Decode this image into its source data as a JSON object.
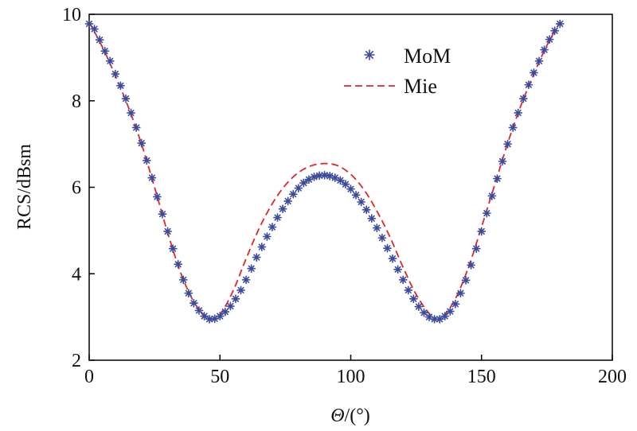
{
  "chart_data": {
    "type": "line",
    "title": "",
    "xlabel_symbol": "Θ",
    "xlabel_unit": "/(°)",
    "ylabel": "RCS/dBsm",
    "xlim": [
      0,
      200
    ],
    "ylim": [
      2,
      10
    ],
    "xticks": [
      0,
      50,
      100,
      150,
      200
    ],
    "yticks": [
      2,
      4,
      6,
      8,
      10
    ],
    "grid": false,
    "legend_position": "top-right",
    "series": [
      {
        "name": "MoM",
        "style": "markers",
        "marker": "asterisk",
        "color": "#3b4a9a",
        "x": [
          0,
          2,
          4,
          6,
          8,
          10,
          12,
          14,
          16,
          18,
          20,
          22,
          24,
          26,
          28,
          30,
          32,
          34,
          36,
          38,
          40,
          42,
          44,
          46,
          48,
          50,
          52,
          54,
          56,
          58,
          60,
          62,
          64,
          66,
          68,
          70,
          72,
          74,
          76,
          78,
          80,
          82,
          84,
          86,
          88,
          90,
          92,
          94,
          96,
          98,
          100,
          102,
          104,
          106,
          108,
          110,
          112,
          114,
          116,
          118,
          120,
          122,
          124,
          126,
          128,
          130,
          132,
          134,
          136,
          138,
          140,
          142,
          144,
          146,
          148,
          150,
          152,
          154,
          156,
          158,
          160,
          162,
          164,
          166,
          168,
          170,
          172,
          174,
          176,
          178,
          180
        ],
        "y": [
          9.78,
          9.66,
          9.41,
          9.15,
          8.92,
          8.62,
          8.35,
          8.05,
          7.72,
          7.38,
          7.02,
          6.62,
          6.22,
          5.78,
          5.38,
          4.98,
          4.58,
          4.22,
          3.86,
          3.55,
          3.32,
          3.15,
          3.02,
          2.95,
          2.96,
          3.02,
          3.12,
          3.25,
          3.42,
          3.62,
          3.86,
          4.12,
          4.38,
          4.62,
          4.86,
          5.08,
          5.3,
          5.5,
          5.68,
          5.84,
          5.98,
          6.1,
          6.18,
          6.24,
          6.27,
          6.28,
          6.26,
          6.22,
          6.16,
          6.07,
          5.96,
          5.82,
          5.66,
          5.48,
          5.28,
          5.06,
          4.83,
          4.59,
          4.35,
          4.1,
          3.86,
          3.62,
          3.42,
          3.24,
          3.1,
          3.0,
          2.95,
          2.95,
          3.02,
          3.13,
          3.3,
          3.55,
          3.85,
          4.2,
          4.58,
          4.98,
          5.4,
          5.8,
          6.2,
          6.6,
          7.0,
          7.38,
          7.72,
          8.05,
          8.37,
          8.65,
          8.92,
          9.18,
          9.42,
          9.62,
          9.78
        ]
      },
      {
        "name": "Mie",
        "style": "dashed-line",
        "color": "#e0262b",
        "x": [
          0,
          5,
          10,
          15,
          20,
          25,
          30,
          35,
          40,
          45,
          47,
          50,
          55,
          60,
          65,
          70,
          75,
          80,
          85,
          90,
          95,
          100,
          105,
          110,
          115,
          120,
          125,
          130,
          133,
          135,
          140,
          145,
          150,
          155,
          160,
          165,
          170,
          175,
          180
        ],
        "y": [
          9.82,
          9.25,
          8.58,
          7.85,
          7.0,
          6.0,
          4.95,
          4.02,
          3.35,
          2.98,
          2.95,
          3.05,
          3.6,
          4.35,
          5.05,
          5.62,
          6.05,
          6.34,
          6.5,
          6.55,
          6.5,
          6.3,
          5.95,
          5.45,
          4.85,
          4.15,
          3.52,
          3.08,
          2.95,
          2.98,
          3.42,
          4.15,
          5.08,
          6.05,
          7.02,
          7.88,
          8.62,
          9.28,
          9.82
        ]
      }
    ]
  }
}
